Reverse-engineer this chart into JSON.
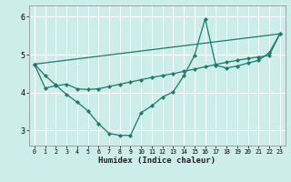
{
  "xlabel": "Humidex (Indice chaleur)",
  "bg_color": "#cceee8",
  "grid_color": "#ffffff",
  "line_color": "#1a7a6e",
  "xlim": [
    -0.5,
    23.5
  ],
  "ylim": [
    2.6,
    6.3
  ],
  "yticks": [
    3,
    4,
    5,
    6
  ],
  "xticks": [
    0,
    1,
    2,
    3,
    4,
    5,
    6,
    7,
    8,
    9,
    10,
    11,
    12,
    13,
    14,
    15,
    16,
    17,
    18,
    19,
    20,
    21,
    22,
    23
  ],
  "line1_x": [
    0,
    1,
    2,
    3,
    4,
    5,
    6,
    7,
    8,
    9,
    10,
    11,
    12,
    13,
    14,
    15,
    16,
    17,
    18,
    19,
    20,
    21,
    22,
    23
  ],
  "line1_y": [
    4.75,
    4.45,
    4.2,
    3.95,
    3.75,
    3.52,
    3.18,
    2.92,
    2.87,
    2.87,
    3.47,
    3.65,
    3.88,
    4.02,
    4.44,
    4.98,
    5.95,
    4.72,
    4.65,
    4.7,
    4.78,
    4.85,
    5.05,
    5.55
  ],
  "line2_x": [
    0,
    1,
    2,
    3,
    4,
    5,
    6,
    7,
    8,
    9,
    10,
    11,
    12,
    13,
    14,
    15,
    16,
    17,
    18,
    19,
    20,
    21,
    22,
    23
  ],
  "line2_y": [
    4.75,
    4.12,
    4.18,
    4.22,
    4.1,
    4.08,
    4.1,
    4.16,
    4.22,
    4.28,
    4.34,
    4.4,
    4.45,
    4.5,
    4.56,
    4.62,
    4.68,
    4.74,
    4.8,
    4.85,
    4.9,
    4.94,
    4.98,
    5.55
  ],
  "line3_x": [
    0,
    23
  ],
  "line3_y": [
    4.75,
    5.55
  ]
}
